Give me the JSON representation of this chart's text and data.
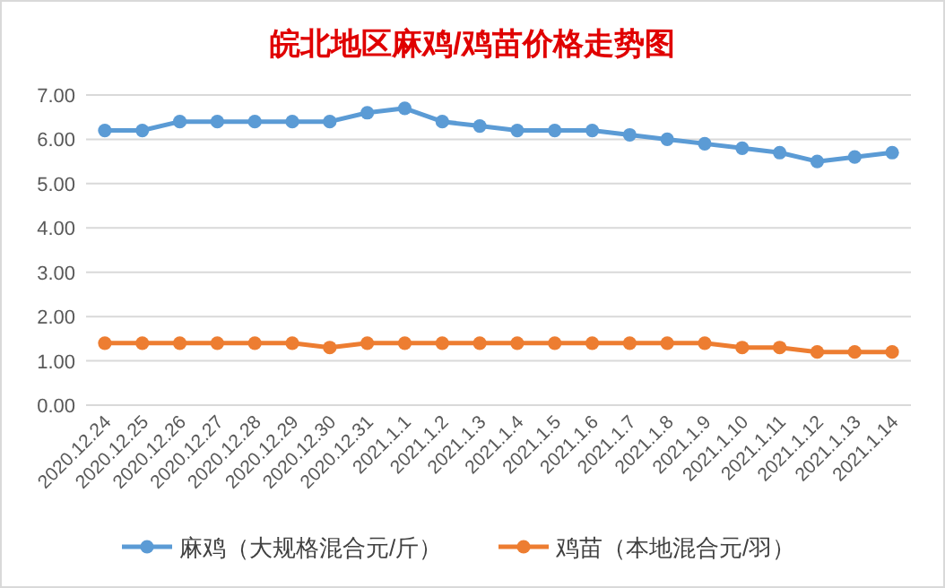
{
  "chart_data": {
    "type": "line",
    "title": "皖北地区麻鸡/鸡苗价格走势图",
    "categories": [
      "2020.12.24",
      "2020.12.25",
      "2020.12.26",
      "2020.12.27",
      "2020.12.28",
      "2020.12.29",
      "2020.12.30",
      "2020.12.31",
      "2021.1.1",
      "2021.1.2",
      "2021.1.3",
      "2021.1.4",
      "2021.1.5",
      "2021.1.6",
      "2021.1.7",
      "2021.1.8",
      "2021.1.9",
      "2021.1.10",
      "2021.1.11",
      "2021.1.12",
      "2021.1.13",
      "2021.1.14"
    ],
    "series": [
      {
        "name": "麻鸡（大规格混合元/斤）",
        "color": "#5b9bd5",
        "values": [
          6.2,
          6.2,
          6.4,
          6.4,
          6.4,
          6.4,
          6.4,
          6.6,
          6.7,
          6.4,
          6.3,
          6.2,
          6.2,
          6.2,
          6.1,
          6.0,
          5.9,
          5.8,
          5.7,
          5.5,
          5.6,
          5.7
        ]
      },
      {
        "name": "鸡苗（本地混合元/羽）",
        "color": "#ed7d31",
        "values": [
          1.4,
          1.4,
          1.4,
          1.4,
          1.4,
          1.4,
          1.3,
          1.4,
          1.4,
          1.4,
          1.4,
          1.4,
          1.4,
          1.4,
          1.4,
          1.4,
          1.4,
          1.3,
          1.3,
          1.2,
          1.2,
          1.2
        ]
      }
    ],
    "ylim": [
      0,
      7
    ],
    "yticks": [
      {
        "value": 0,
        "label": "0.00"
      },
      {
        "value": 1,
        "label": "1.00"
      },
      {
        "value": 2,
        "label": "2.00"
      },
      {
        "value": 3,
        "label": "3.00"
      },
      {
        "value": 4,
        "label": "4.00"
      },
      {
        "value": 5,
        "label": "5.00"
      },
      {
        "value": 6,
        "label": "6.00"
      },
      {
        "value": 7,
        "label": "7.00"
      }
    ],
    "grid": "y",
    "legend": "bottom",
    "marker": "circle"
  }
}
